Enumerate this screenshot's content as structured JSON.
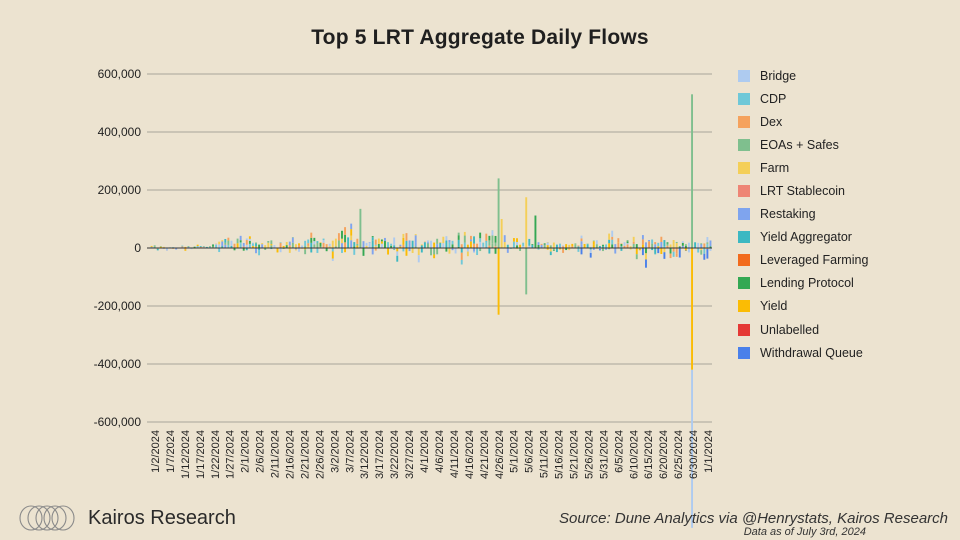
{
  "chart_data": {
    "type": "bar",
    "stacked": true,
    "title": "Top 5 LRT Aggregate Daily Flows",
    "xlabel": "",
    "ylabel": "",
    "ylim": [
      -600000,
      600000
    ],
    "yticks": [
      600000,
      400000,
      200000,
      0,
      -200000,
      -400000,
      -600000
    ],
    "ytick_labels": [
      "600,000",
      "400,000",
      "200,000",
      "0",
      "-200,000",
      "-400,000",
      "-600,000"
    ],
    "xtick_labels": [
      "1/2/2024",
      "1/7/2024",
      "1/12/2024",
      "1/17/2024",
      "1/22/2024",
      "1/27/2024",
      "2/1/2024",
      "2/6/2024",
      "2/11/2024",
      "2/16/2024",
      "2/21/2024",
      "2/26/2024",
      "3/2/2024",
      "3/7/2024",
      "3/12/2024",
      "3/17/2024",
      "3/22/2024",
      "3/27/2024",
      "4/1/2024",
      "4/6/2024",
      "4/11/2024",
      "4/16/2024",
      "4/21/2024",
      "4/26/2024",
      "5/1/2024",
      "5/6/2024",
      "5/11/2024",
      "5/16/2024",
      "5/21/2024",
      "5/26/2024",
      "5/31/2024",
      "6/5/2024",
      "6/10/2024",
      "6/15/2024",
      "6/20/2024",
      "6/25/2024",
      "6/30/2024",
      "1/1/2024"
    ],
    "grid": true,
    "legend_position": "right",
    "series": [
      {
        "name": "Bridge",
        "color": "#aecbf0"
      },
      {
        "name": "CDP",
        "color": "#6fc8d8"
      },
      {
        "name": "Dex",
        "color": "#f5a25d"
      },
      {
        "name": "EOAs + Safes",
        "color": "#7fbf8e"
      },
      {
        "name": "Farm",
        "color": "#f4cf58"
      },
      {
        "name": "LRT Stablecoin",
        "color": "#ee8575"
      },
      {
        "name": "Restaking",
        "color": "#7fa4ee"
      },
      {
        "name": "Yield Aggregator",
        "color": "#3cb8c2"
      },
      {
        "name": "Leveraged Farming",
        "color": "#f26b1d"
      },
      {
        "name": "Lending Protocol",
        "color": "#34a853"
      },
      {
        "name": "Yield",
        "color": "#fbbc04"
      },
      {
        "name": "Unlabelled",
        "color": "#e53935"
      },
      {
        "name": "Withdrawal Queue",
        "color": "#4a80ea"
      }
    ],
    "notable_values": [
      {
        "date": "3/11/2024",
        "series": "EOAs + Safes",
        "value": 135000
      },
      {
        "date": "4/25/2024",
        "series": "EOAs + Safes",
        "value": 240000
      },
      {
        "date": "4/25/2024",
        "series": "Yield",
        "value": -230000
      },
      {
        "date": "4/26/2024",
        "series": "Farm",
        "value": 100000
      },
      {
        "date": "5/4/2024",
        "series": "Farm",
        "value": 175000
      },
      {
        "date": "5/4/2024",
        "series": "EOAs + Safes",
        "value": -160000
      },
      {
        "date": "5/7/2024",
        "series": "Lending Protocol",
        "value": 112000
      },
      {
        "date": "6/27/2024",
        "series": "EOAs + Safes",
        "value": 530000
      },
      {
        "date": "6/27/2024",
        "series": "Yield",
        "value": -420000
      },
      {
        "date": "6/27/2024",
        "series": "Bridge",
        "value": -545000
      }
    ]
  },
  "brand": {
    "name": "Kairos Research",
    "logo_icon": "kairos-rings-logo"
  },
  "footer": {
    "source": "Source: Dune Analytics via @Henrystats, Kairos Research",
    "as_of": "Data as of July 3rd, 2024"
  }
}
